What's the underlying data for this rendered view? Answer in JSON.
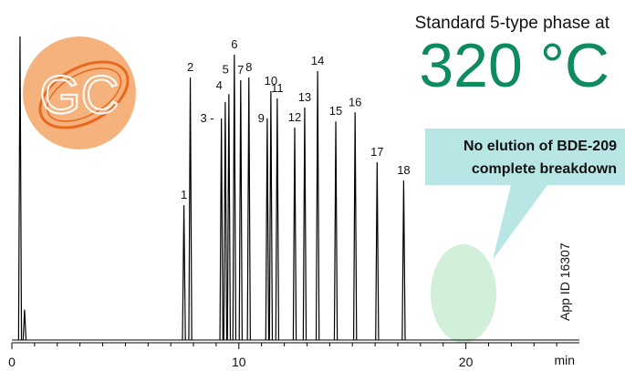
{
  "chart_data": {
    "type": "chromatogram",
    "title": "Standard 5-type phase at",
    "subtitle": "320 °C",
    "logo": "GC",
    "annotation": [
      "No elution of BDE-209",
      "complete breakdown"
    ],
    "side_note": "App ID 16307",
    "x_label": "min",
    "x": [
      0.36,
      0.56,
      7.58,
      7.86,
      9.23,
      9.4,
      9.56,
      9.8,
      10.08,
      10.44,
      11.25,
      11.41,
      11.69,
      12.46,
      12.9,
      13.47,
      14.27,
      15.12,
      16.09,
      17.26
    ],
    "values": [
      100,
      10,
      44.4,
      86.5,
      73,
      78.4,
      81,
      94,
      85.6,
      86.5,
      73,
      82,
      79.6,
      70,
      76.6,
      88.6,
      72,
      75,
      58.6,
      52.6
    ],
    "labels": [
      null,
      null,
      "1",
      "2",
      "3 -",
      "4",
      "5",
      "6",
      "7",
      "8",
      "9",
      "10",
      "11",
      "12",
      "13",
      "14",
      "15",
      "16",
      "17",
      "18"
    ],
    "color": "#000000",
    "xlim": [
      0,
      25
    ],
    "ylim": [
      0,
      100
    ],
    "xticks": [
      0,
      10,
      20
    ],
    "minor_xticks": [
      1,
      2,
      3,
      4,
      5,
      6,
      7,
      8,
      9,
      11,
      12,
      13,
      14,
      15,
      16,
      17,
      18,
      19,
      21,
      22,
      23,
      24
    ]
  }
}
